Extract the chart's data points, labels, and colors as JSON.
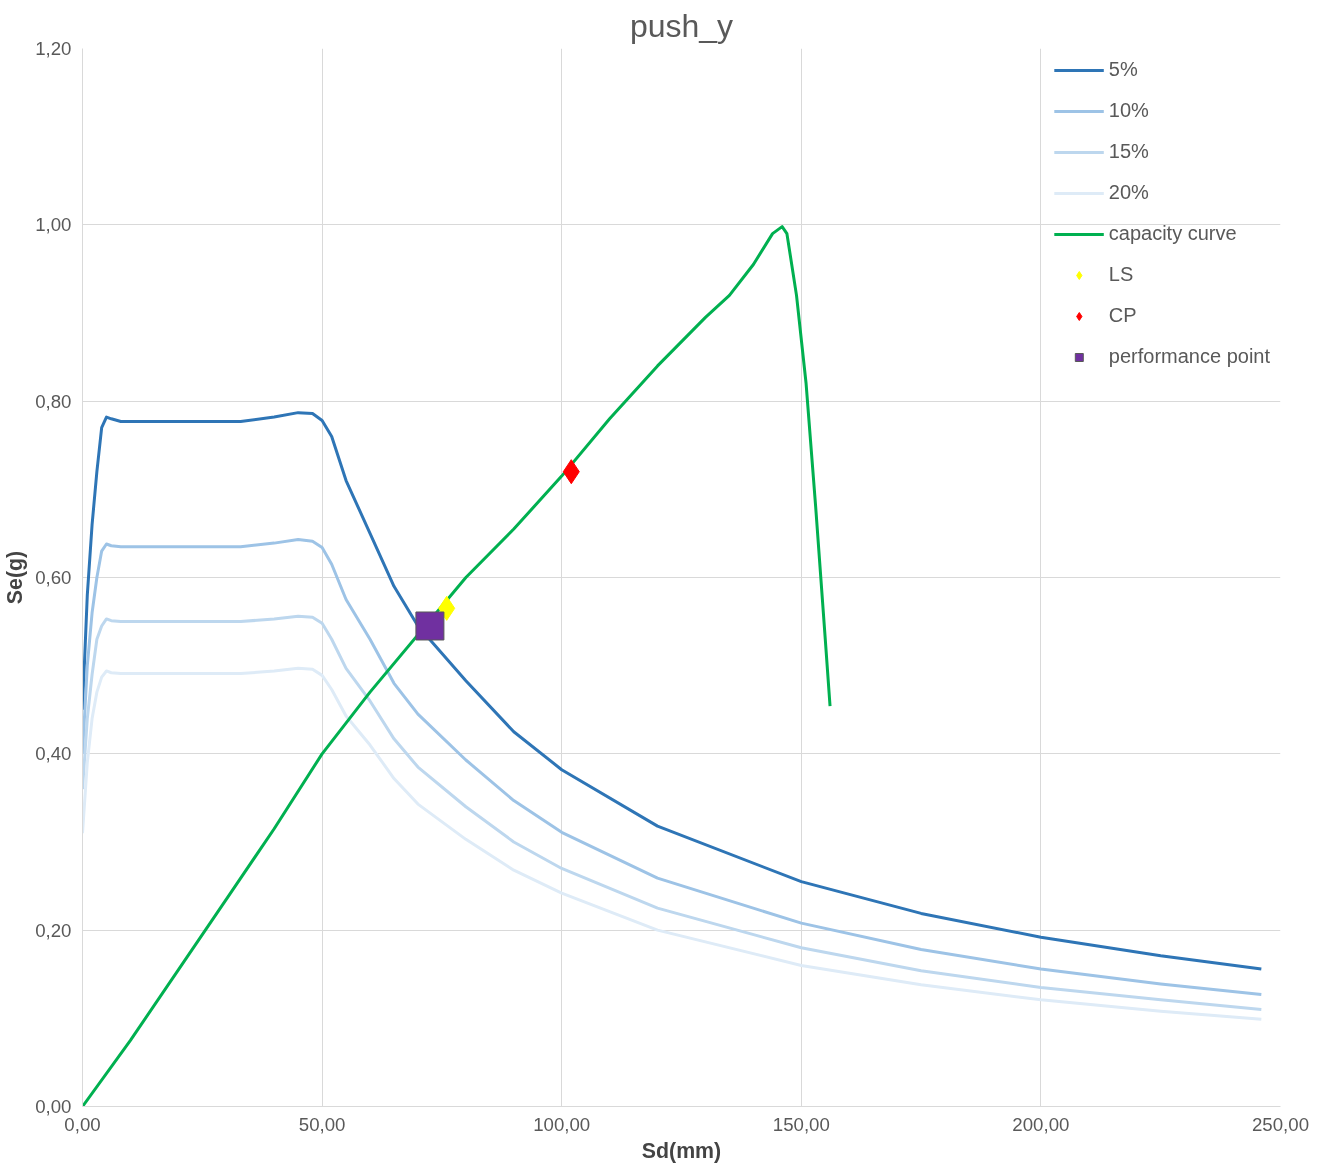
{
  "chart_data": {
    "type": "line",
    "title": "push_y",
    "xlabel": "Sd(mm)",
    "ylabel": "Se(g)",
    "xlim": [
      0,
      250
    ],
    "ylim": [
      0,
      1.2
    ],
    "xticks": [
      {
        "value": 0,
        "label": "0,00"
      },
      {
        "value": 50,
        "label": "50,00"
      },
      {
        "value": 100,
        "label": "100,00"
      },
      {
        "value": 150,
        "label": "150,00"
      },
      {
        "value": 200,
        "label": "200,00"
      },
      {
        "value": 250,
        "label": "250,00"
      }
    ],
    "yticks": [
      {
        "value": 0,
        "label": "0,00"
      },
      {
        "value": 0.2,
        "label": "0,20"
      },
      {
        "value": 0.4,
        "label": "0,40"
      },
      {
        "value": 0.6,
        "label": "0,60"
      },
      {
        "value": 0.8,
        "label": "0,80"
      },
      {
        "value": 1.0,
        "label": "1,00"
      },
      {
        "value": 1.2,
        "label": "1,20"
      }
    ],
    "grid": true,
    "legend": "top right",
    "series": [
      {
        "name": "5%",
        "color": "#2e75b6",
        "x": [
          0,
          1,
          2,
          3,
          4,
          5,
          6,
          8,
          10,
          20,
          33,
          40,
          45,
          48,
          50,
          52,
          55,
          60,
          65,
          70,
          80,
          90,
          100,
          120,
          150,
          175,
          200,
          225,
          246
        ],
        "values": [
          0.45,
          0.58,
          0.66,
          0.72,
          0.77,
          0.782,
          0.78,
          0.777,
          0.777,
          0.777,
          0.777,
          0.782,
          0.787,
          0.786,
          0.778,
          0.76,
          0.71,
          0.65,
          0.59,
          0.545,
          0.483,
          0.425,
          0.382,
          0.318,
          0.255,
          0.219,
          0.192,
          0.171,
          0.156
        ]
      },
      {
        "name": "10%",
        "color": "#9dc3e6",
        "x": [
          0,
          1,
          2,
          3,
          4,
          5,
          6,
          8,
          10,
          20,
          33,
          40,
          45,
          48,
          50,
          52,
          55,
          60,
          65,
          70,
          80,
          90,
          100,
          120,
          150,
          175,
          200,
          225,
          246
        ],
        "values": [
          0.4,
          0.5,
          0.56,
          0.6,
          0.63,
          0.638,
          0.636,
          0.635,
          0.635,
          0.635,
          0.635,
          0.639,
          0.643,
          0.641,
          0.634,
          0.615,
          0.575,
          0.53,
          0.48,
          0.445,
          0.393,
          0.347,
          0.311,
          0.259,
          0.208,
          0.178,
          0.156,
          0.139,
          0.127
        ]
      },
      {
        "name": "15%",
        "color": "#bdd7ee",
        "x": [
          0,
          1,
          2,
          3,
          4,
          5,
          6,
          8,
          10,
          20,
          33,
          40,
          45,
          48,
          50,
          52,
          55,
          60,
          65,
          70,
          80,
          90,
          100,
          120,
          150,
          175,
          200,
          225,
          246
        ],
        "values": [
          0.36,
          0.44,
          0.49,
          0.53,
          0.545,
          0.553,
          0.551,
          0.55,
          0.55,
          0.55,
          0.55,
          0.553,
          0.556,
          0.555,
          0.548,
          0.53,
          0.497,
          0.46,
          0.417,
          0.385,
          0.34,
          0.3,
          0.27,
          0.225,
          0.18,
          0.154,
          0.135,
          0.121,
          0.11
        ]
      },
      {
        "name": "20%",
        "color": "#deebf7",
        "x": [
          0,
          1,
          2,
          3,
          4,
          5,
          6,
          8,
          10,
          20,
          33,
          40,
          45,
          48,
          50,
          52,
          55,
          60,
          65,
          70,
          80,
          90,
          100,
          120,
          150,
          175,
          200,
          225,
          246
        ],
        "values": [
          0.31,
          0.39,
          0.44,
          0.47,
          0.487,
          0.494,
          0.492,
          0.491,
          0.491,
          0.491,
          0.491,
          0.494,
          0.497,
          0.496,
          0.489,
          0.473,
          0.443,
          0.41,
          0.372,
          0.343,
          0.303,
          0.268,
          0.242,
          0.2,
          0.16,
          0.138,
          0.121,
          0.108,
          0.099
        ]
      },
      {
        "name": "capacity curve",
        "color": "#00b050",
        "x": [
          0,
          10,
          20,
          30,
          40,
          50,
          60,
          80,
          90,
          100,
          110,
          120,
          130,
          135,
          140,
          144,
          146,
          147,
          149,
          151,
          153,
          155,
          156
        ],
        "values": [
          0,
          0.075,
          0.155,
          0.235,
          0.315,
          0.4,
          0.47,
          0.6,
          0.655,
          0.715,
          0.78,
          0.84,
          0.895,
          0.92,
          0.955,
          0.99,
          0.998,
          0.99,
          0.92,
          0.82,
          0.68,
          0.53,
          0.454
        ]
      },
      {
        "name": "LS",
        "type": "scatter",
        "marker": "diamond",
        "color": "#ffff00",
        "x": [
          76
        ],
        "values": [
          0.565
        ]
      },
      {
        "name": "CP",
        "type": "scatter",
        "marker": "diamond",
        "color": "#ff0000",
        "x": [
          102
        ],
        "values": [
          0.72
        ]
      },
      {
        "name": "performance point",
        "type": "scatter",
        "marker": "square",
        "color": "#7030a0",
        "x": [
          72.5
        ],
        "values": [
          0.545
        ]
      }
    ]
  }
}
